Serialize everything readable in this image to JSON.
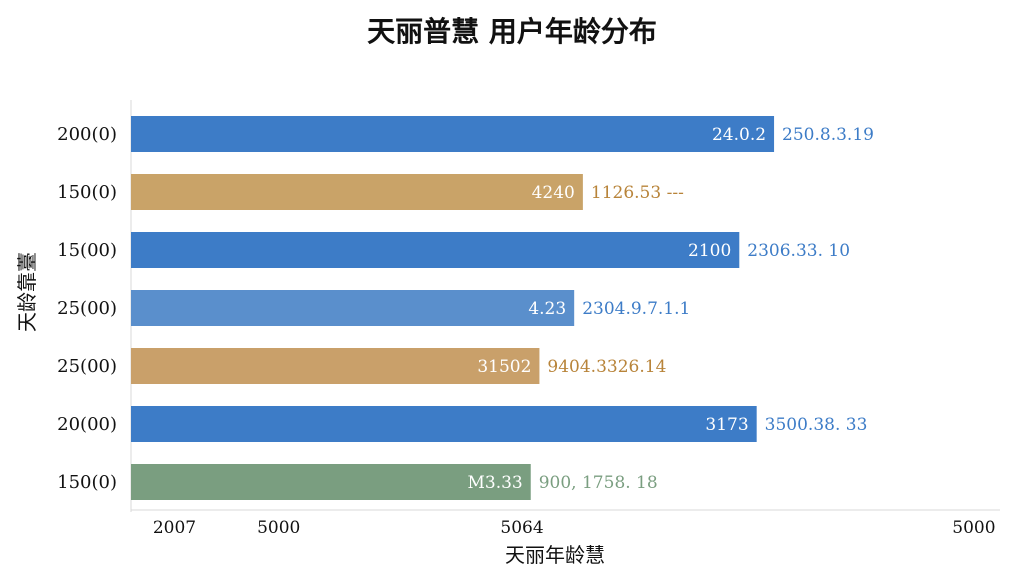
{
  "chart_data": {
    "type": "bar",
    "orientation": "horizontal",
    "title": "天丽普慧 用户年龄分布",
    "xlabel": "天丽年龄慧",
    "ylabel": "天龄靠薹",
    "categories": [
      "200(0)",
      "150(0)",
      "15(00)",
      "25(00)",
      "25(00)",
      "20(00)",
      "150(0)"
    ],
    "values": [
      7400,
      5200,
      7000,
      5100,
      4700,
      7200,
      4600
    ],
    "inside_labels": [
      "24.0.2",
      "4240",
      "2100",
      "4.23",
      "31502",
      "3173",
      "M3.33"
    ],
    "outside_labels": [
      "250.8.3.19",
      "1126.53 ---",
      "2306.33. 10",
      "2304.9.7.1.1",
      "9404.3326.14",
      "3500.38. 33",
      "900, 1758. 18"
    ],
    "bar_colors": [
      "#3d7cc7",
      "#c9a368",
      "#3d7cc7",
      "#5a8fcc",
      "#c9a06a",
      "#3d7cc7",
      "#7a9e80"
    ],
    "label_colors": [
      "#3d7cc7",
      "#b8843a",
      "#3d7cc7",
      "#3d7cc7",
      "#b8843a",
      "#3d7cc7",
      "#7a9e80"
    ],
    "x_tick_labels": [
      "2007",
      "5000",
      "5064",
      "5000"
    ],
    "x_tick_values": [
      500,
      1700,
      4500,
      9700
    ],
    "xlim": [
      0,
      10000
    ],
    "grid": false
  }
}
